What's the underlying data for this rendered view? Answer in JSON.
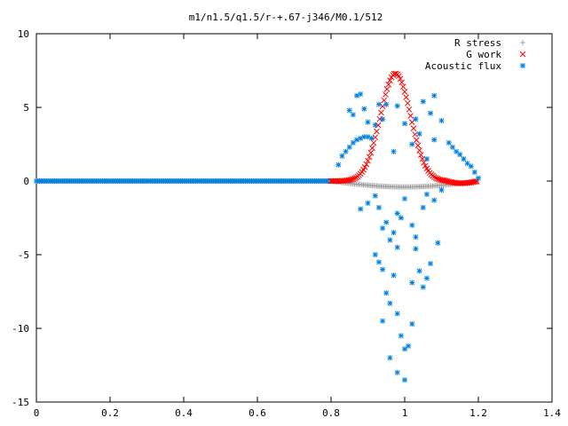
{
  "chart_data": {
    "type": "scatter",
    "title": "m1/n1.5/q1.5/r-+.67-j346/M0.1/512",
    "xlabel": "",
    "ylabel": "",
    "xlim": [
      0,
      1.4
    ],
    "ylim": [
      -15,
      10
    ],
    "xticks": [
      "0",
      "0.2",
      "0.4",
      "0.6",
      "0.8",
      "1",
      "1.2",
      "1.4"
    ],
    "yticks": [
      "10",
      "5",
      "0",
      "-5",
      "-10",
      "-15"
    ],
    "grid": false,
    "legend_position": "top-right",
    "series": [
      {
        "name": "R stress",
        "color": "#a0a0a0",
        "marker": "plus",
        "x_range": [
          0,
          1.2
        ],
        "points_sample": [
          [
            0.8,
            0
          ],
          [
            0.85,
            -0.15
          ],
          [
            0.9,
            -0.3
          ],
          [
            0.95,
            -0.4
          ],
          [
            1.0,
            -0.38
          ],
          [
            1.05,
            -0.3
          ],
          [
            1.1,
            -0.2
          ],
          [
            1.15,
            -0.08
          ],
          [
            1.2,
            0
          ]
        ]
      },
      {
        "name": "G work",
        "color": "#ff0000",
        "marker": "cross",
        "points_sample": [
          [
            0.8,
            0.05
          ],
          [
            0.85,
            0.8
          ],
          [
            0.9,
            2.5
          ],
          [
            0.95,
            5.8
          ],
          [
            0.98,
            7.3
          ],
          [
            1.02,
            6.2
          ],
          [
            1.06,
            2.8
          ],
          [
            1.1,
            0.5
          ],
          [
            1.15,
            -0.15
          ],
          [
            1.2,
            0
          ]
        ]
      },
      {
        "name": "Acoustic flux",
        "color": "#0080e0",
        "marker": "star",
        "points": [
          [
            0.82,
            1.1
          ],
          [
            0.83,
            1.7
          ],
          [
            0.84,
            2.0
          ],
          [
            0.85,
            2.3
          ],
          [
            0.86,
            2.6
          ],
          [
            0.87,
            2.8
          ],
          [
            0.88,
            2.9
          ],
          [
            0.89,
            3.0
          ],
          [
            0.9,
            3.0
          ],
          [
            0.91,
            2.9
          ],
          [
            0.87,
            5.8
          ],
          [
            0.88,
            5.9
          ],
          [
            0.86,
            4.5
          ],
          [
            0.85,
            4.8
          ],
          [
            0.89,
            4.9
          ],
          [
            0.93,
            5.2
          ],
          [
            0.95,
            5.2
          ],
          [
            0.92,
            3.8
          ],
          [
            0.9,
            4.0
          ],
          [
            0.94,
            4.2
          ],
          [
            0.98,
            5.1
          ],
          [
            1.0,
            3.9
          ],
          [
            1.03,
            4.2
          ],
          [
            1.05,
            5.4
          ],
          [
            1.08,
            5.8
          ],
          [
            1.07,
            4.6
          ],
          [
            1.1,
            4.1
          ],
          [
            1.04,
            3.2
          ],
          [
            1.02,
            2.5
          ],
          [
            0.97,
            2.0
          ],
          [
            1.06,
            1.5
          ],
          [
            1.08,
            2.8
          ],
          [
            1.12,
            2.6
          ],
          [
            1.13,
            2.3
          ],
          [
            1.14,
            2.0
          ],
          [
            1.15,
            1.8
          ],
          [
            1.16,
            1.5
          ],
          [
            1.17,
            1.2
          ],
          [
            1.18,
            1.0
          ],
          [
            1.19,
            0.6
          ],
          [
            1.2,
            0.2
          ],
          [
            0.88,
            -1.9
          ],
          [
            0.9,
            -1.5
          ],
          [
            0.92,
            -1.0
          ],
          [
            0.93,
            -1.8
          ],
          [
            0.94,
            -3.2
          ],
          [
            0.95,
            -2.8
          ],
          [
            0.96,
            -4.0
          ],
          [
            0.97,
            -3.5
          ],
          [
            0.98,
            -2.2
          ],
          [
            0.99,
            -2.5
          ],
          [
            1.0,
            -1.2
          ],
          [
            1.02,
            -3.0
          ],
          [
            1.03,
            -4.6
          ],
          [
            1.05,
            -1.8
          ],
          [
            1.06,
            -0.9
          ],
          [
            1.08,
            -1.3
          ],
          [
            1.1,
            -0.6
          ],
          [
            1.09,
            -4.2
          ],
          [
            1.07,
            -5.6
          ],
          [
            1.04,
            -6.1
          ],
          [
            0.93,
            -5.5
          ],
          [
            0.94,
            -6.0
          ],
          [
            0.95,
            -7.6
          ],
          [
            0.96,
            -8.3
          ],
          [
            0.97,
            -6.4
          ],
          [
            0.98,
            -9.0
          ],
          [
            0.99,
            -10.5
          ],
          [
            1.0,
            -11.4
          ],
          [
            1.01,
            -11.2
          ],
          [
            1.02,
            -9.7
          ],
          [
            0.94,
            -9.5
          ],
          [
            0.96,
            -12.0
          ],
          [
            0.98,
            -13.0
          ],
          [
            1.0,
            -13.5
          ],
          [
            1.05,
            -7.2
          ],
          [
            1.06,
            -6.6
          ],
          [
            0.98,
            -4.5
          ],
          [
            1.02,
            -6.9
          ],
          [
            0.92,
            -5.0
          ],
          [
            1.03,
            -3.8
          ]
        ]
      }
    ]
  }
}
